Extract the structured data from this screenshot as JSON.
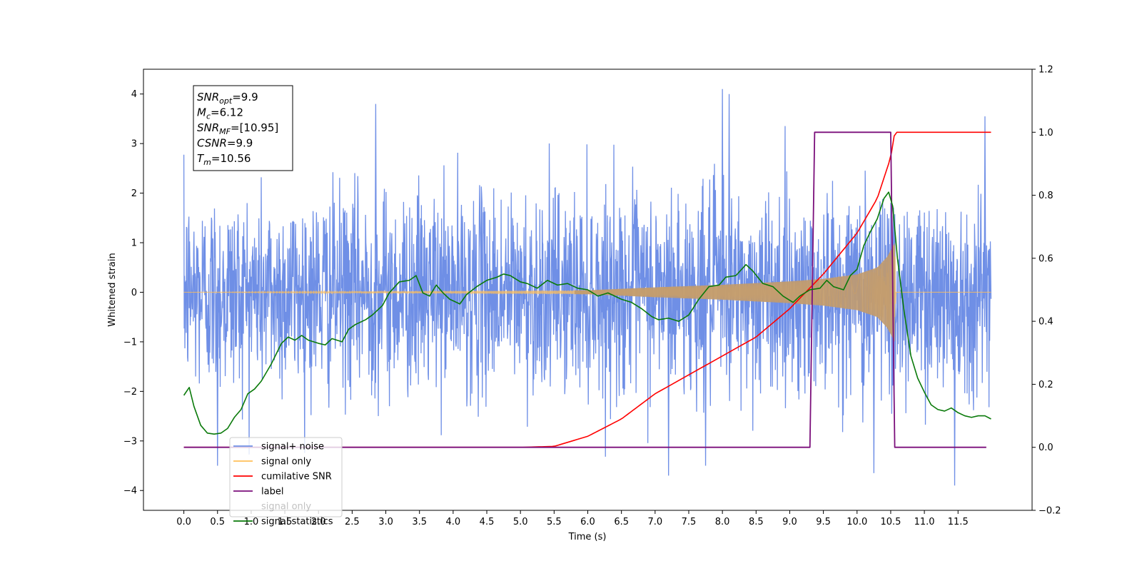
{
  "chart_data": {
    "type": "line",
    "xlabel": "Time (s)",
    "ylabel": "Whitened strain",
    "xlim": [
      -0.6,
      12.6
    ],
    "ylim": [
      -4.4,
      4.5
    ],
    "y2lim": [
      -0.2,
      1.2
    ],
    "x_ticks": [
      0.0,
      0.5,
      1.0,
      1.5,
      2.0,
      2.5,
      3.0,
      3.5,
      4.0,
      4.5,
      5.0,
      5.5,
      6.0,
      6.5,
      7.0,
      7.5,
      8.0,
      8.5,
      9.0,
      9.5,
      10.0,
      10.5,
      11.0,
      11.5
    ],
    "x_tick_labels": [
      "0.0",
      "0.5",
      "1.0",
      "1.5",
      "2.0",
      "2.5",
      "3.0",
      "3.5",
      "4.0",
      "4.5",
      "5.0",
      "5.5",
      "6.0",
      "6.5",
      "7.0",
      "7.5",
      "8.0",
      "8.5",
      "9.0",
      "9.5",
      "10.0",
      "10.5",
      "11.0",
      "11.5"
    ],
    "y_ticks": [
      -4,
      -3,
      -2,
      -1,
      0,
      1,
      2,
      3,
      4
    ],
    "y_tick_labels": [
      "−4",
      "−3",
      "−2",
      "−1",
      "0",
      "1",
      "2",
      "3",
      "4"
    ],
    "y2_ticks": [
      -0.2,
      0.0,
      0.2,
      0.4,
      0.6,
      0.8,
      1.0,
      1.2
    ],
    "y2_tick_labels": [
      "−0.2",
      "0.0",
      "0.2",
      "0.4",
      "0.6",
      "0.8",
      "1.0",
      "1.2"
    ],
    "legend_placement": "lower-left",
    "grid": false,
    "annotation": {
      "lines": [
        {
          "main": "SNR",
          "sub": "opt",
          "rest": "=9.9"
        },
        {
          "main": "M",
          "sub": "c",
          "rest": "=6.12"
        },
        {
          "main": "SNR",
          "sub": "MF",
          "rest": "=[10.95]"
        },
        {
          "main": "CSNR",
          "sub": "",
          "rest": "=9.9"
        },
        {
          "main": "T",
          "sub": "m",
          "rest": "=10.56"
        }
      ]
    },
    "series": [
      {
        "name": "signal+ noise",
        "axis": "left",
        "color": "#6f8fe6",
        "kind": "noise",
        "x_range": [
          0.0,
          11.99
        ],
        "baseline_std": 1.0,
        "peak_values": [
          {
            "x": 2.85,
            "y": 3.8
          },
          {
            "x": 8.0,
            "y": 4.1
          },
          {
            "x": 8.1,
            "y": 4.0
          },
          {
            "x": 11.9,
            "y": 3.55
          },
          {
            "x": 11.45,
            "y": -3.9
          },
          {
            "x": 7.2,
            "y": -3.7
          },
          {
            "x": 10.25,
            "y": -3.65
          },
          {
            "x": 0.5,
            "y": -3.5
          },
          {
            "x": 7.75,
            "y": -3.5
          }
        ]
      },
      {
        "name": "signal only",
        "axis": "left",
        "color": "#ffbf5a",
        "kind": "chirp",
        "x_range": [
          0.0,
          11.99
        ],
        "merger_time": 10.56,
        "envelope": [
          [
            0.0,
            0.0
          ],
          [
            6.0,
            0.04
          ],
          [
            7.0,
            0.1
          ],
          [
            8.0,
            0.15
          ],
          [
            9.0,
            0.22
          ],
          [
            9.5,
            0.27
          ],
          [
            10.0,
            0.36
          ],
          [
            10.3,
            0.5
          ],
          [
            10.45,
            0.72
          ],
          [
            10.56,
            1.0
          ],
          [
            10.58,
            0.0
          ],
          [
            11.99,
            0.0
          ]
        ]
      },
      {
        "name": "cumilative SNR",
        "axis": "right",
        "color": "#ff0000",
        "points": [
          [
            0.0,
            0.0
          ],
          [
            5.0,
            0.0
          ],
          [
            5.5,
            0.003
          ],
          [
            6.0,
            0.035
          ],
          [
            6.5,
            0.09
          ],
          [
            7.0,
            0.17
          ],
          [
            7.5,
            0.23
          ],
          [
            8.0,
            0.29
          ],
          [
            8.5,
            0.35
          ],
          [
            9.0,
            0.44
          ],
          [
            9.5,
            0.55
          ],
          [
            10.0,
            0.68
          ],
          [
            10.3,
            0.79
          ],
          [
            10.5,
            0.92
          ],
          [
            10.56,
            1.0
          ],
          [
            11.99,
            1.0
          ]
        ]
      },
      {
        "name": "label",
        "axis": "right",
        "color": "#7b0f7b",
        "points": [
          [
            0.0,
            0.0
          ],
          [
            9.3,
            0.0
          ],
          [
            9.37,
            1.0
          ],
          [
            10.5,
            1.0
          ],
          [
            10.56,
            0.0
          ],
          [
            11.92,
            0.0
          ]
        ]
      },
      {
        "name": "signal statistics",
        "axis": "right",
        "color": "#0a7a0a",
        "points": [
          [
            0.0,
            0.165
          ],
          [
            0.08,
            0.19
          ],
          [
            0.15,
            0.13
          ],
          [
            0.25,
            0.07
          ],
          [
            0.35,
            0.045
          ],
          [
            0.45,
            0.042
          ],
          [
            0.55,
            0.045
          ],
          [
            0.65,
            0.06
          ],
          [
            0.75,
            0.095
          ],
          [
            0.85,
            0.12
          ],
          [
            0.95,
            0.17
          ],
          [
            1.05,
            0.185
          ],
          [
            1.15,
            0.21
          ],
          [
            1.3,
            0.265
          ],
          [
            1.45,
            0.33
          ],
          [
            1.55,
            0.35
          ],
          [
            1.65,
            0.34
          ],
          [
            1.75,
            0.355
          ],
          [
            1.85,
            0.34
          ],
          [
            2.0,
            0.33
          ],
          [
            2.1,
            0.325
          ],
          [
            2.2,
            0.345
          ],
          [
            2.35,
            0.335
          ],
          [
            2.45,
            0.375
          ],
          [
            2.55,
            0.39
          ],
          [
            2.7,
            0.405
          ],
          [
            2.8,
            0.42
          ],
          [
            2.95,
            0.45
          ],
          [
            3.05,
            0.49
          ],
          [
            3.2,
            0.525
          ],
          [
            3.35,
            0.53
          ],
          [
            3.45,
            0.545
          ],
          [
            3.55,
            0.49
          ],
          [
            3.65,
            0.48
          ],
          [
            3.75,
            0.515
          ],
          [
            3.85,
            0.49
          ],
          [
            3.95,
            0.47
          ],
          [
            4.1,
            0.455
          ],
          [
            4.2,
            0.485
          ],
          [
            4.35,
            0.51
          ],
          [
            4.5,
            0.53
          ],
          [
            4.65,
            0.54
          ],
          [
            4.75,
            0.55
          ],
          [
            4.85,
            0.545
          ],
          [
            5.0,
            0.525
          ],
          [
            5.1,
            0.52
          ],
          [
            5.25,
            0.505
          ],
          [
            5.4,
            0.53
          ],
          [
            5.55,
            0.515
          ],
          [
            5.7,
            0.52
          ],
          [
            5.85,
            0.505
          ],
          [
            6.0,
            0.5
          ],
          [
            6.15,
            0.48
          ],
          [
            6.3,
            0.49
          ],
          [
            6.5,
            0.47
          ],
          [
            6.65,
            0.46
          ],
          [
            6.8,
            0.44
          ],
          [
            6.95,
            0.415
          ],
          [
            7.05,
            0.405
          ],
          [
            7.2,
            0.41
          ],
          [
            7.35,
            0.4
          ],
          [
            7.5,
            0.42
          ],
          [
            7.65,
            0.47
          ],
          [
            7.8,
            0.51
          ],
          [
            7.95,
            0.515
          ],
          [
            8.05,
            0.54
          ],
          [
            8.2,
            0.545
          ],
          [
            8.35,
            0.58
          ],
          [
            8.45,
            0.56
          ],
          [
            8.6,
            0.52
          ],
          [
            8.75,
            0.51
          ],
          [
            8.9,
            0.48
          ],
          [
            9.05,
            0.46
          ],
          [
            9.15,
            0.48
          ],
          [
            9.3,
            0.5
          ],
          [
            9.45,
            0.505
          ],
          [
            9.55,
            0.53
          ],
          [
            9.65,
            0.51
          ],
          [
            9.8,
            0.5
          ],
          [
            9.9,
            0.545
          ],
          [
            10.0,
            0.565
          ],
          [
            10.1,
            0.64
          ],
          [
            10.2,
            0.685
          ],
          [
            10.3,
            0.725
          ],
          [
            10.4,
            0.79
          ],
          [
            10.47,
            0.81
          ],
          [
            10.53,
            0.765
          ],
          [
            10.6,
            0.6
          ],
          [
            10.7,
            0.43
          ],
          [
            10.8,
            0.29
          ],
          [
            10.9,
            0.22
          ],
          [
            11.0,
            0.175
          ],
          [
            11.1,
            0.135
          ],
          [
            11.2,
            0.12
          ],
          [
            11.3,
            0.115
          ],
          [
            11.4,
            0.125
          ],
          [
            11.5,
            0.11
          ],
          [
            11.6,
            0.1
          ],
          [
            11.7,
            0.095
          ],
          [
            11.8,
            0.1
          ],
          [
            11.9,
            0.1
          ],
          [
            11.99,
            0.09
          ]
        ]
      }
    ],
    "legend": [
      {
        "label": "signal+ noise",
        "color": "#6f8fe6",
        "alpha": 1.0
      },
      {
        "label": "signal only",
        "color": "#ffbf5a",
        "alpha": 1.0
      },
      {
        "label": "cumilative SNR",
        "color": "#ff0000",
        "alpha": 1.0
      },
      {
        "label": "label",
        "color": "#7b0f7b",
        "alpha": 1.0
      },
      {
        "label": "signal only",
        "color": "#ffbf5a",
        "alpha": 0.0
      },
      {
        "label": "signal statistics",
        "color": "#0a7a0a",
        "alpha": 1.0
      }
    ]
  }
}
